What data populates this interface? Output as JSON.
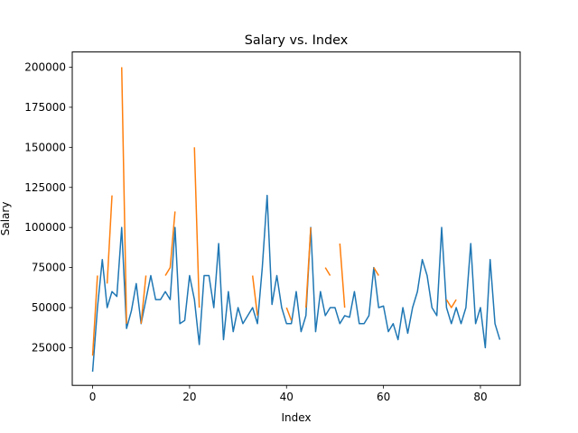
{
  "chart_data": {
    "type": "line",
    "title": "Salary vs. Index",
    "xlabel": "Index",
    "ylabel": "Salary",
    "xlim": [
      -4.2,
      88.2
    ],
    "ylim": [
      1500,
      209500
    ],
    "xticks": [
      0,
      20,
      40,
      60,
      80
    ],
    "yticks": [
      25000,
      50000,
      75000,
      100000,
      125000,
      150000,
      175000,
      200000
    ],
    "ytick_labels": [
      "25000",
      "50000",
      "75000",
      "100000",
      "125000",
      "150000",
      "175000",
      "200000"
    ],
    "grid": false,
    "legend": "none",
    "series": [
      {
        "color": "#1f77b4",
        "x": [
          0,
          1,
          2,
          3,
          4,
          5,
          6,
          7,
          8,
          9,
          10,
          11,
          12,
          13,
          14,
          15,
          16,
          17,
          18,
          19,
          20,
          21,
          22,
          23,
          24,
          25,
          26,
          27,
          28,
          29,
          30,
          31,
          32,
          33,
          34,
          35,
          36,
          37,
          38,
          39,
          40,
          41,
          42,
          43,
          44,
          45,
          46,
          47,
          48,
          49,
          50,
          51,
          52,
          53,
          54,
          55,
          56,
          57,
          58,
          59,
          60,
          61,
          62,
          63,
          64,
          65,
          66,
          67,
          68,
          69,
          70,
          71,
          72,
          73,
          74,
          75,
          76,
          77,
          78,
          79,
          80,
          81,
          82,
          83,
          84
        ],
        "values": [
          10000,
          50000,
          80000,
          50000,
          60000,
          57000,
          100000,
          37000,
          48000,
          65000,
          40000,
          55000,
          70000,
          55000,
          55000,
          60000,
          55000,
          100000,
          40000,
          42000,
          70000,
          55000,
          27000,
          70000,
          70000,
          50000,
          90000,
          30000,
          60000,
          35000,
          50000,
          40000,
          45000,
          50000,
          40000,
          75000,
          120000,
          52000,
          70000,
          50000,
          40000,
          40000,
          60000,
          35000,
          45000,
          100000,
          35000,
          60000,
          45000,
          50000,
          50000,
          40000,
          45000,
          44000,
          60000,
          40000,
          40000,
          45000,
          75000,
          50000,
          51000,
          35000,
          40000,
          30000,
          50000,
          34000,
          50000,
          60000,
          80000,
          70000,
          50000,
          45000,
          100000,
          50000,
          40000,
          50000,
          40000,
          50000,
          90000,
          40000,
          50000,
          25000,
          80000,
          40000,
          30000
        ]
      },
      {
        "color": "#ff7f0e",
        "x": [
          0,
          1,
          2,
          3,
          4,
          5,
          6,
          7,
          8,
          9,
          10,
          11,
          12,
          13,
          14,
          15,
          16,
          17,
          18,
          19,
          20,
          21,
          22,
          23,
          24,
          25,
          26,
          27,
          28,
          29,
          30,
          31,
          32,
          33,
          34,
          35,
          36,
          37,
          38,
          39,
          40,
          41,
          42,
          43,
          44,
          45,
          46,
          47,
          48,
          49,
          50,
          51,
          52,
          53,
          54,
          55,
          56,
          57,
          58,
          59,
          60,
          61,
          62,
          63,
          64,
          65,
          66,
          67,
          68,
          69,
          70,
          71,
          72,
          73,
          74,
          75,
          76,
          77,
          78,
          79,
          80,
          81,
          82,
          83,
          84
        ],
        "values": [
          20000,
          70000,
          null,
          65000,
          120000,
          null,
          200000,
          40000,
          null,
          null,
          40000,
          70000,
          null,
          null,
          null,
          70000,
          75000,
          110000,
          null,
          null,
          null,
          150000,
          50000,
          null,
          null,
          null,
          null,
          null,
          null,
          null,
          null,
          null,
          null,
          70000,
          45000,
          null,
          null,
          null,
          null,
          null,
          50000,
          42000,
          null,
          null,
          50000,
          100000,
          null,
          null,
          75000,
          70000,
          null,
          90000,
          50000,
          null,
          null,
          null,
          null,
          null,
          75000,
          70000,
          null,
          null,
          null,
          null,
          null,
          null,
          null,
          null,
          null,
          null,
          null,
          null,
          null,
          55000,
          50000,
          55000,
          null,
          null,
          null,
          null,
          null,
          null,
          null,
          null,
          null
        ]
      }
    ]
  }
}
